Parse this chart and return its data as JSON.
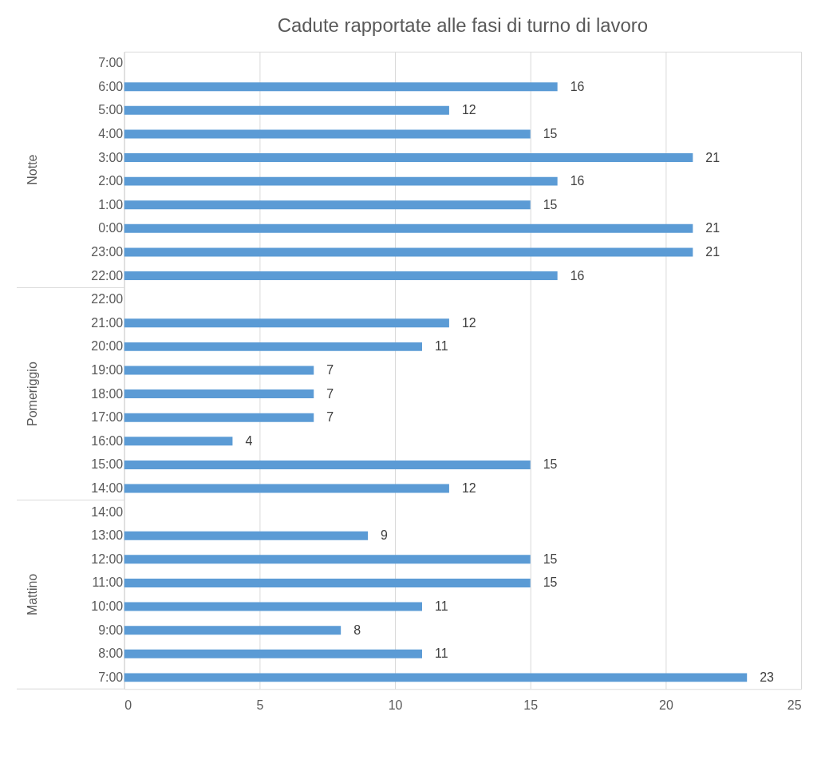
{
  "chart_data": {
    "type": "bar",
    "orientation": "horizontal",
    "title": "Cadute rapportate alle fasi di turno di lavoro",
    "categories": [
      "7:00",
      "6:00",
      "5:00",
      "4:00",
      "3:00",
      "2:00",
      "1:00",
      "0:00",
      "23:00",
      "22:00",
      "22:00",
      "21:00",
      "20:00",
      "19:00",
      "18:00",
      "17:00",
      "16:00",
      "15:00",
      "14:00",
      "14:00",
      "13:00",
      "12:00",
      "11:00",
      "10:00",
      "9:00",
      "8:00",
      "7:00"
    ],
    "values": [
      null,
      16,
      12,
      15,
      21,
      16,
      15,
      21,
      21,
      16,
      null,
      12,
      11,
      7,
      7,
      7,
      4,
      15,
      12,
      null,
      9,
      15,
      15,
      11,
      8,
      11,
      23
    ],
    "color": "#5b9bd5",
    "annotations": [
      "Notte",
      "Pomeriggio",
      "Mattino"
    ],
    "xlim": [
      0,
      25
    ],
    "xticks": [
      0,
      5,
      10,
      15,
      20,
      25
    ],
    "grid": "x",
    "data_labels": true
  }
}
